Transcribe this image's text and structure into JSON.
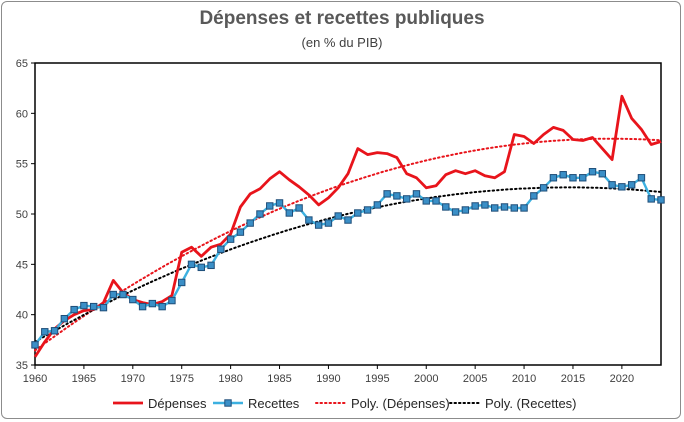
{
  "chart_data": {
    "type": "line",
    "title": "Dépenses et recettes publiques",
    "subtitle": "(en % du PIB)",
    "xlabel": "",
    "ylabel": "",
    "xlim": [
      1960,
      2024
    ],
    "ylim": [
      35,
      65
    ],
    "yticks": [
      35,
      40,
      45,
      50,
      55,
      60,
      65
    ],
    "xticks": [
      1960,
      1965,
      1970,
      1975,
      1980,
      1985,
      1990,
      1995,
      2000,
      2005,
      2010,
      2015,
      2020
    ],
    "x": [
      1960,
      1961,
      1962,
      1963,
      1964,
      1965,
      1966,
      1967,
      1968,
      1969,
      1970,
      1971,
      1972,
      1973,
      1974,
      1975,
      1976,
      1977,
      1978,
      1979,
      1980,
      1981,
      1982,
      1983,
      1984,
      1985,
      1986,
      1987,
      1988,
      1989,
      1990,
      1991,
      1992,
      1993,
      1994,
      1995,
      1996,
      1997,
      1998,
      1999,
      2000,
      2001,
      2002,
      2003,
      2004,
      2005,
      2006,
      2007,
      2008,
      2009,
      2010,
      2011,
      2012,
      2013,
      2014,
      2015,
      2016,
      2017,
      2018,
      2019,
      2020,
      2021,
      2022,
      2023,
      2024
    ],
    "series": [
      {
        "name": "Dépenses",
        "color": "#e8141b",
        "values": [
          35.8,
          37.3,
          38.6,
          39.4,
          40.0,
          40.4,
          40.5,
          41.2,
          43.4,
          42.2,
          41.5,
          41.2,
          41.0,
          41.3,
          41.9,
          46.2,
          46.7,
          45.8,
          46.7,
          47.0,
          48.0,
          50.7,
          52.0,
          52.5,
          53.5,
          54.2,
          53.4,
          52.7,
          51.9,
          50.9,
          51.6,
          52.6,
          54.0,
          56.5,
          55.9,
          56.1,
          56.0,
          55.6,
          54.0,
          53.6,
          52.6,
          52.8,
          53.9,
          54.3,
          54.0,
          54.3,
          53.8,
          53.6,
          54.2,
          57.9,
          57.7,
          57.0,
          57.9,
          58.6,
          58.3,
          57.4,
          57.3,
          57.6,
          56.5,
          55.4,
          61.7,
          59.5,
          58.4,
          56.9,
          57.2
        ]
      },
      {
        "name": "Recettes",
        "color": "#3cb0e0",
        "values": [
          37.0,
          38.3,
          38.4,
          39.6,
          40.5,
          40.9,
          40.8,
          40.7,
          42.0,
          42.0,
          41.5,
          40.8,
          41.1,
          40.8,
          41.4,
          43.2,
          45.0,
          44.7,
          44.9,
          46.5,
          47.5,
          48.2,
          49.1,
          50.0,
          50.8,
          51.1,
          50.1,
          50.6,
          49.4,
          48.9,
          49.1,
          49.8,
          49.4,
          50.1,
          50.4,
          50.9,
          52.0,
          51.8,
          51.5,
          52.0,
          51.3,
          51.3,
          50.7,
          50.2,
          50.4,
          50.8,
          50.9,
          50.6,
          50.7,
          50.6,
          50.6,
          51.8,
          52.6,
          53.6,
          53.9,
          53.6,
          53.6,
          54.2,
          54.0,
          52.9,
          52.7,
          52.9,
          53.6,
          51.5,
          51.4
        ]
      }
    ],
    "trendlines": [
      {
        "name": "Poly. (Dépenses)",
        "color": "#e8141b"
      },
      {
        "name": "Poly. (Recettes)",
        "color": "#000000"
      }
    ],
    "legend_position": "bottom",
    "grid": false
  }
}
